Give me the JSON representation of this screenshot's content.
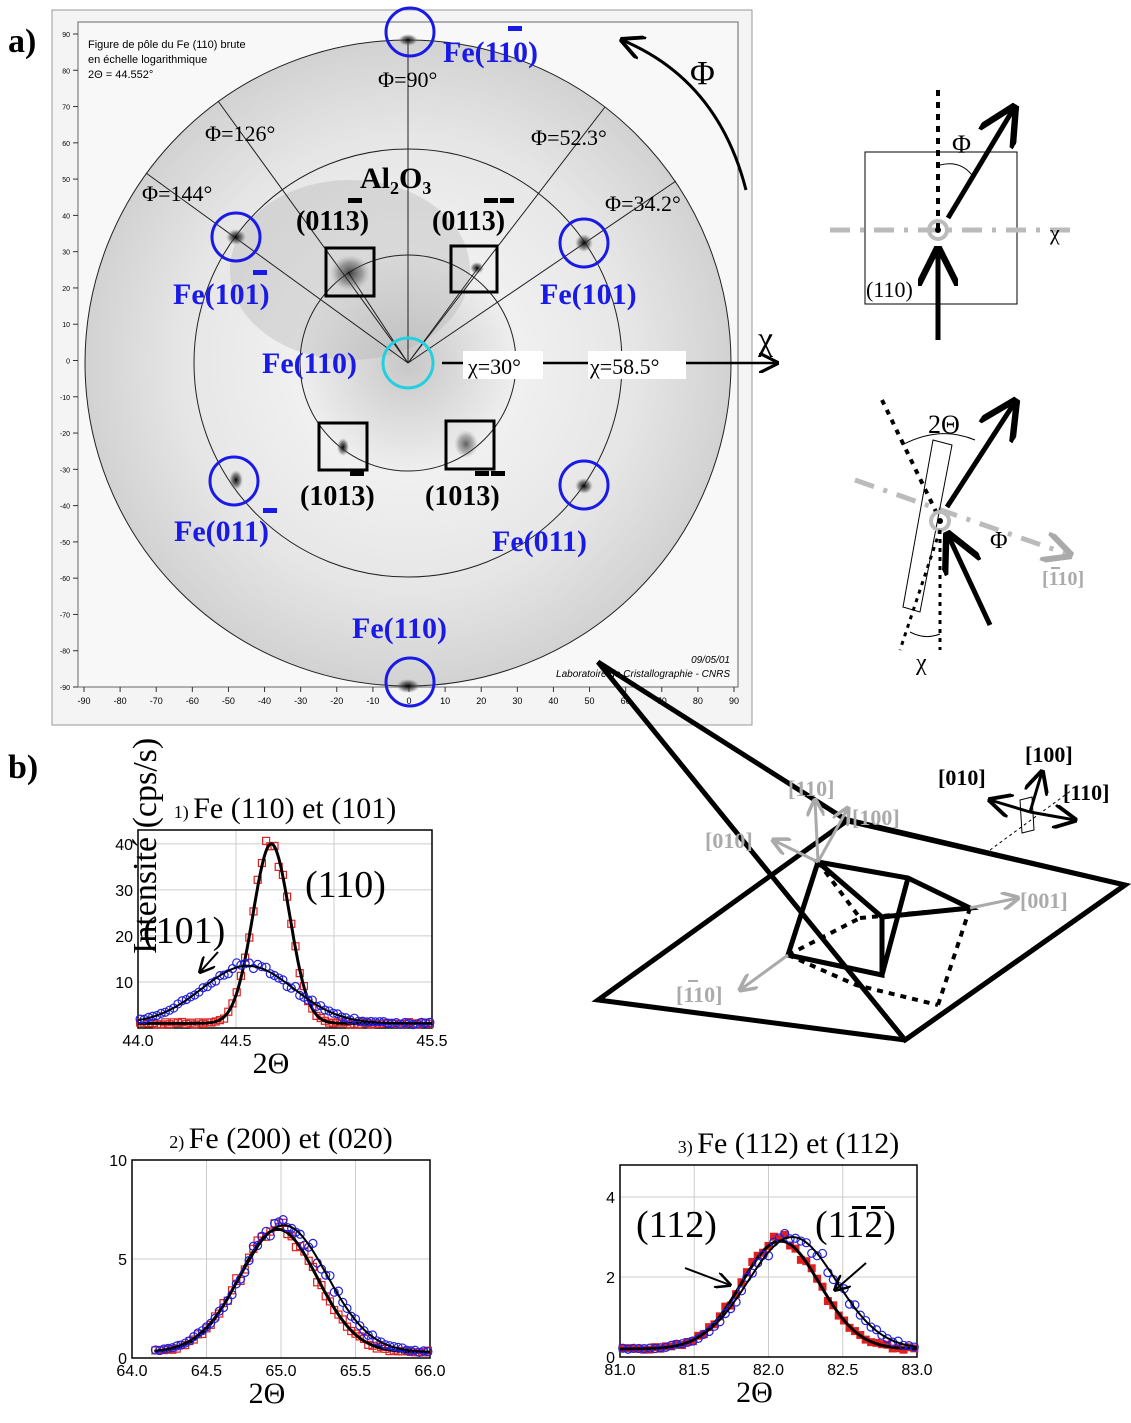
{
  "panel_a": {
    "label": "a)",
    "info_line1": "Figure de pôle du Fe (110) brute",
    "info_line2": "en échelle logarithmique",
    "info_line3": "2Θ = 44.552°",
    "date": "09/05/01",
    "lab": "Laboratoire de Cristallographie - CNRS",
    "phi_axis": "Φ",
    "chi_axis": "χ",
    "phi90": "Φ=90°",
    "phi126": "Φ=126°",
    "phi144": "Φ=144°",
    "phi523": "Φ=52.3°",
    "phi342": "Φ=34.2°",
    "chi30": "χ=30°",
    "chi585": "χ=58.5°",
    "al2o3_a": "Al",
    "al2o3_sub2": "2",
    "al2o3_b": "O",
    "al2o3_sub3": "3",
    "fe_center": "Fe(110)",
    "fe_bottom": "Fe(110)",
    "fe_top": "Fe(110)",
    "fe_10m1": "Fe(101)",
    "fe_101": "Fe(101)",
    "fe_01m1": "Fe(011)",
    "fe_011": "Fe(011)",
    "al_0m13": "(0113)",
    "al_0m1m3": "(0113)",
    "al_10m13": "(1013)",
    "al_1m0m13": "(1013)",
    "xticks": [
      "-90",
      "-80",
      "-70",
      "-60",
      "-50",
      "-40",
      "-30",
      "-20",
      "-10",
      "0",
      "10",
      "20",
      "30",
      "40",
      "50",
      "60",
      "70",
      "80",
      "90"
    ],
    "yticks": [
      "90",
      "80",
      "70",
      "60",
      "50",
      "40",
      "30",
      "20",
      "10",
      "0",
      "-10",
      "-20",
      "-30",
      "-40",
      "-50",
      "-60",
      "-70",
      "-80",
      "-90"
    ]
  },
  "geometry": {
    "phi": "Φ",
    "chi": "χ",
    "hkl": "(110)",
    "two_theta": "2Θ",
    "phi2": "Φ",
    "dir110": "[110]",
    "chi2": "χ"
  },
  "panel_b": {
    "label": "b)",
    "dir_110": "[110]",
    "dir_100": "[100]",
    "dir_010": "[010]",
    "dir_001": "[001]",
    "dir_m110": "[110]",
    "dir_010_b": "[010]",
    "dir_100_b": "[100]",
    "dir_110_b": "[110]"
  },
  "chart_data": [
    {
      "type": "scatter",
      "title": "1) Fe (110) et (101)",
      "xlabel": "2Θ",
      "ylabel": "Intensité (cps/s)",
      "xlim": [
        44.0,
        45.5
      ],
      "ylim": [
        0,
        43
      ],
      "xticks": [
        "44.0",
        "44.5",
        "45.0",
        "45.5"
      ],
      "yticks": [
        "10",
        "20",
        "30",
        "40"
      ],
      "annotations": [
        "(110)",
        "(101)"
      ],
      "series": [
        {
          "name": "(110)",
          "marker": "open-square",
          "color": "#e02020",
          "peak_x": 44.68,
          "peak_y": 40,
          "fwhm": 0.22,
          "baseline": 1
        },
        {
          "name": "(101)",
          "marker": "open-circle",
          "color": "#2020e0",
          "peak_x": 44.56,
          "peak_y": 13.5,
          "fwhm": 0.55,
          "baseline": 1
        }
      ]
    },
    {
      "type": "scatter",
      "title": "2) Fe (200) et (020)",
      "xlabel": "2Θ",
      "ylabel": "",
      "xlim": [
        64.0,
        66.0
      ],
      "ylim": [
        0,
        10
      ],
      "xticks": [
        "64.0",
        "64.5",
        "65.0",
        "65.5",
        "66.0"
      ],
      "yticks": [
        "0",
        "5",
        "10"
      ],
      "series": [
        {
          "name": "(200)",
          "marker": "open-square",
          "color": "#e02020",
          "peak_x": 64.98,
          "peak_y": 6.5,
          "fwhm": 0.62,
          "baseline": 0.3
        },
        {
          "name": "(020)",
          "marker": "open-circle",
          "color": "#2020e0",
          "peak_x": 65.02,
          "peak_y": 6.7,
          "fwhm": 0.68,
          "baseline": 0.3
        }
      ]
    },
    {
      "type": "scatter",
      "title": "3) Fe (112) et (112)",
      "xlabel": "2Θ",
      "ylabel": "",
      "xlim": [
        81.0,
        83.0
      ],
      "ylim": [
        0,
        4.8
      ],
      "xticks": [
        "81.0",
        "81.5",
        "82.0",
        "82.5",
        "83.0"
      ],
      "yticks": [
        "0",
        "2",
        "4"
      ],
      "annotations": [
        "(112)",
        "(112)"
      ],
      "series": [
        {
          "name": "(112)",
          "marker": "filled-square",
          "color": "#e02020",
          "peak_x": 82.08,
          "peak_y": 2.9,
          "fwhm": 0.62,
          "baseline": 0.2
        },
        {
          "name": "(112)",
          "marker": "open-circle",
          "color": "#2020e0",
          "peak_x": 82.16,
          "peak_y": 3.0,
          "fwhm": 0.7,
          "baseline": 0.2
        }
      ]
    }
  ]
}
